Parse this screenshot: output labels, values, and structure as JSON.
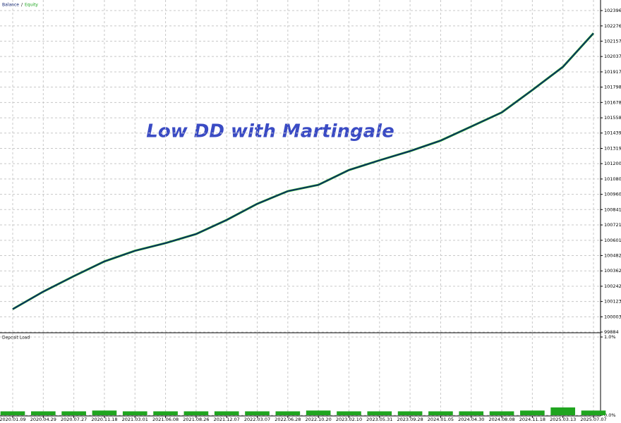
{
  "chart_data": [
    {
      "type": "line",
      "annotation": "Low DD with Martingale",
      "series": [
        {
          "name": "Equity",
          "color": "#1fa51f",
          "values": [
            100063,
            100200,
            100321,
            100436,
            100519,
            100579,
            100650,
            100760,
            100886,
            100985,
            101034,
            101150,
            101226,
            101298,
            101380,
            101490,
            101600,
            101775,
            101956,
            102219
          ]
        },
        {
          "name": "Balance",
          "color": "#0b1f6e",
          "values": [
            100063,
            100200,
            100321,
            100436,
            100519,
            100579,
            100650,
            100760,
            100886,
            100985,
            101034,
            101150,
            101226,
            101298,
            101380,
            101490,
            101600,
            101775,
            101956,
            102219
          ]
        }
      ],
      "ylim": [
        99884,
        102451
      ],
      "yticks": [
        99884,
        100003,
        100123,
        100242,
        100362,
        100482,
        100601,
        100721,
        100841,
        100960,
        101080,
        101200,
        101319,
        101439,
        101558,
        101678,
        101798,
        101917,
        102037,
        102157,
        102276,
        102396
      ],
      "grid": true
    },
    {
      "type": "bar",
      "title": "Deposit Load",
      "color": "#1fa51f",
      "categories": [
        "2020.01.09",
        "2020.04.29",
        "2020.07.27",
        "2020.11.18",
        "2021.03.01",
        "2021.06.08",
        "2021.08.26",
        "2021.12.07",
        "2022.03.07",
        "2022.06.28",
        "2022.10.20",
        "2023.02.10",
        "2023.05.31",
        "2023.09.28",
        "2024.01.05",
        "2024.04.30",
        "2024.08.08",
        "2024.11.18",
        "2025.03.13",
        "2025.07.07"
      ],
      "values": [
        0.05,
        0.05,
        0.05,
        0.06,
        0.05,
        0.05,
        0.05,
        0.05,
        0.05,
        0.05,
        0.06,
        0.05,
        0.05,
        0.05,
        0.05,
        0.05,
        0.05,
        0.06,
        0.1,
        0.06
      ],
      "ylim": [
        0,
        1
      ],
      "yticks": [
        {
          "value": 0,
          "label": "0.0%"
        },
        {
          "value": 1,
          "label": "1.0%"
        }
      ],
      "grid": true
    }
  ]
}
